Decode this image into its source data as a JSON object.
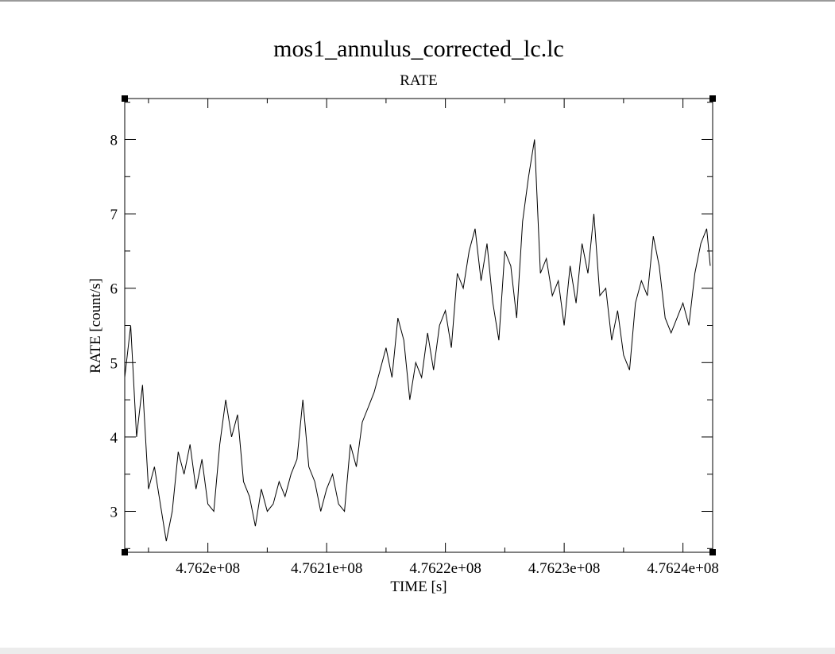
{
  "chart_data": {
    "type": "line",
    "title": "mos1_annulus_corrected_lc.lc",
    "subtitle": "RATE",
    "xlabel": "TIME [s]",
    "ylabel": "RATE [count/s]",
    "xlim": [
      476193000,
      476242500
    ],
    "ylim": [
      2.45,
      8.55
    ],
    "xticks": [
      476200000,
      476210000,
      476220000,
      476230000,
      476240000
    ],
    "xticklabels": [
      "4.762e+08",
      "4.7621e+08",
      "4.7622e+08",
      "4.7623e+08",
      "4.7624e+08"
    ],
    "yticks": [
      3,
      4,
      5,
      6,
      7,
      8
    ],
    "yticklabels": [
      "3",
      "4",
      "5",
      "6",
      "7",
      "8"
    ],
    "grid": false,
    "series": [
      {
        "color": "#000000",
        "x": [
          476193000,
          476193500,
          476194000,
          476194500,
          476195000,
          476195500,
          476196000,
          476196500,
          476197000,
          476197500,
          476198000,
          476198500,
          476199000,
          476199500,
          476200000,
          476200500,
          476201000,
          476201500,
          476202000,
          476202500,
          476203000,
          476203500,
          476204000,
          476204500,
          476205000,
          476205500,
          476206000,
          476206500,
          476207000,
          476207500,
          476208000,
          476208500,
          476209000,
          476209500,
          476210000,
          476210500,
          476211000,
          476211500,
          476212000,
          476212500,
          476213000,
          476213500,
          476214000,
          476214500,
          476215000,
          476215500,
          476216000,
          476216500,
          476217000,
          476217500,
          476218000,
          476218500,
          476219000,
          476219500,
          476220000,
          476220500,
          476221000,
          476221500,
          476222000,
          476222500,
          476223000,
          476223500,
          476224000,
          476224500,
          476225000,
          476225500,
          476226000,
          476226500,
          476227000,
          476227500,
          476228000,
          476228500,
          476229000,
          476229500,
          476230000,
          476230500,
          476231000,
          476231500,
          476232000,
          476232500,
          476233000,
          476233500,
          476234000,
          476234500,
          476235000,
          476235500,
          476236000,
          476236500,
          476237000,
          476237500,
          476238000,
          476238500,
          476239000,
          476239500,
          476240000,
          476240500,
          476241000,
          476241500,
          476242000,
          476242300
        ],
        "y": [
          4.8,
          5.5,
          4.0,
          4.7,
          3.3,
          3.6,
          3.1,
          2.6,
          3.0,
          3.8,
          3.5,
          3.9,
          3.3,
          3.7,
          3.1,
          3.0,
          3.9,
          4.5,
          4.0,
          4.3,
          3.4,
          3.2,
          2.8,
          3.3,
          3.0,
          3.1,
          3.4,
          3.2,
          3.5,
          3.7,
          4.5,
          3.6,
          3.4,
          3.0,
          3.3,
          3.5,
          3.1,
          3.0,
          3.9,
          3.6,
          4.2,
          4.4,
          4.6,
          4.9,
          5.2,
          4.8,
          5.6,
          5.3,
          4.5,
          5.0,
          4.8,
          5.4,
          4.9,
          5.5,
          5.7,
          5.2,
          6.2,
          6.0,
          6.5,
          6.8,
          6.1,
          6.6,
          5.8,
          5.3,
          6.5,
          6.3,
          5.6,
          6.9,
          7.5,
          8.0,
          6.2,
          6.4,
          5.9,
          6.1,
          5.5,
          6.3,
          5.8,
          6.6,
          6.2,
          7.0,
          5.9,
          6.0,
          5.3,
          5.7,
          5.1,
          4.9,
          5.8,
          6.1,
          5.9,
          6.7,
          6.3,
          5.6,
          5.4,
          5.6,
          5.8,
          5.5,
          6.2,
          6.6,
          6.8,
          6.3
        ]
      }
    ]
  }
}
